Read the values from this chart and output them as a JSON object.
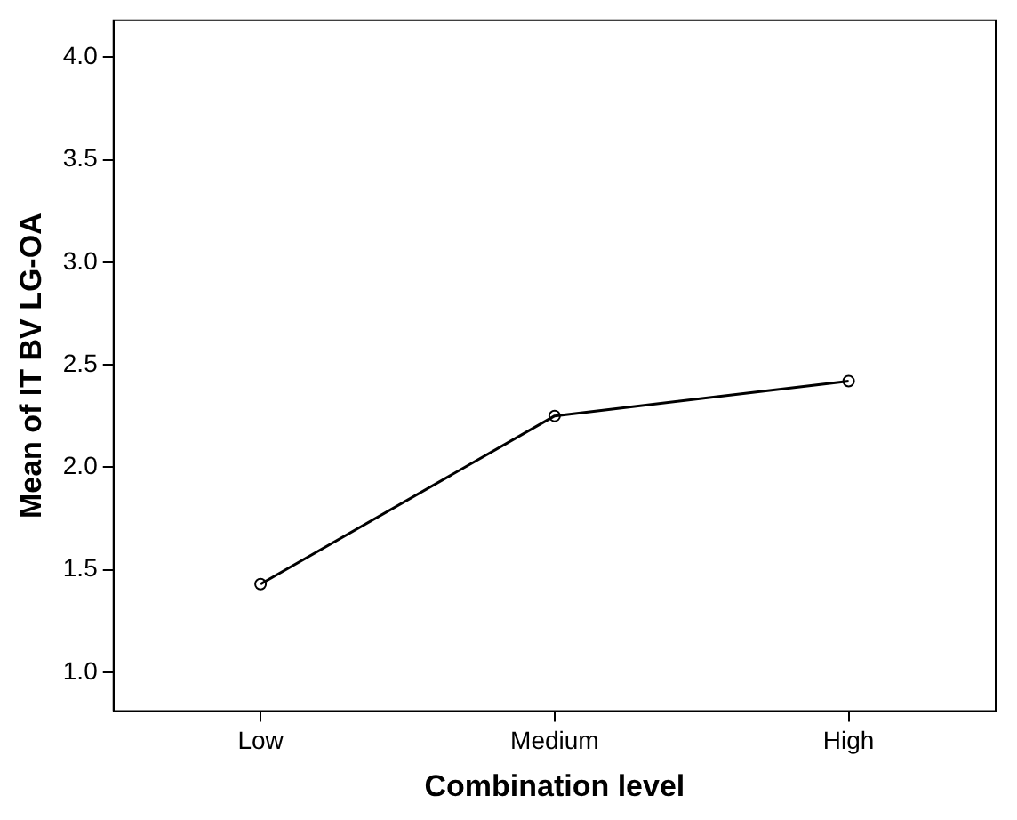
{
  "chart_data": {
    "type": "line",
    "xlabel": "Combination level",
    "ylabel": "Mean of IT BV LG-OA",
    "categories": [
      "Low",
      "Medium",
      "High"
    ],
    "series": [
      {
        "color": "#000000",
        "values": [
          1.43,
          2.25,
          2.42
        ]
      }
    ],
    "ylim": [
      0.81,
      4.18
    ],
    "yticks": [
      {
        "value": 1,
        "label": "1.0"
      },
      {
        "value": 1.5,
        "label": "1.5"
      },
      {
        "value": 2,
        "label": "2.0"
      },
      {
        "value": 2.5,
        "label": "2.5"
      },
      {
        "value": 3,
        "label": "3.0"
      },
      {
        "value": 3.5,
        "label": "3.5"
      },
      {
        "value": 4,
        "label": "4.0"
      }
    ],
    "grid": false,
    "legend": false,
    "marker": "circle",
    "line_style": "solid"
  }
}
